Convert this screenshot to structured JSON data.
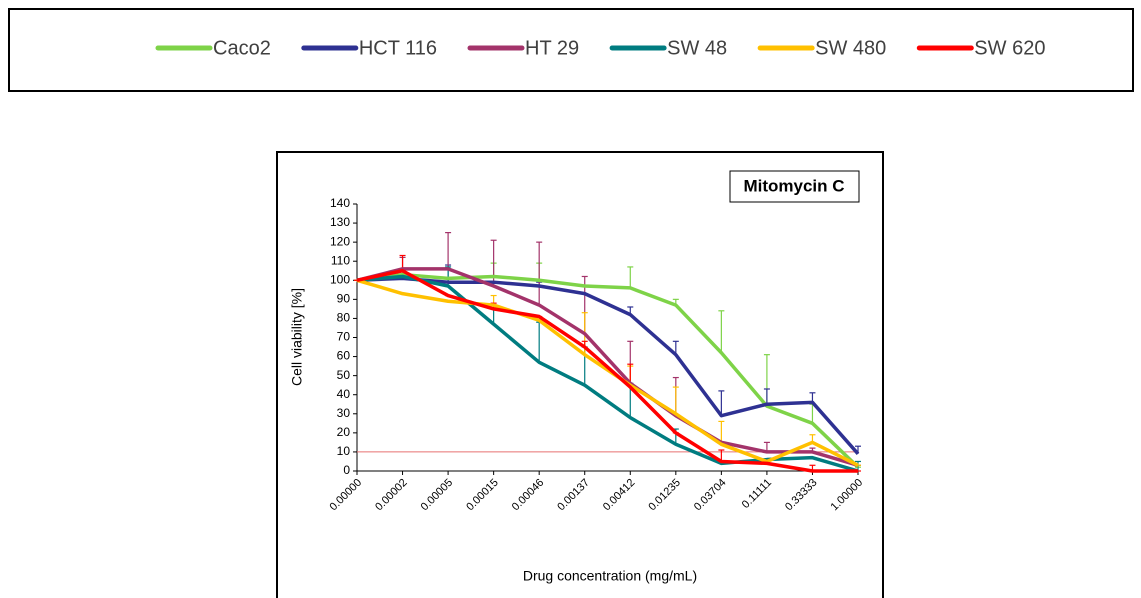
{
  "chart_data": {
    "type": "line",
    "title": "Mitomycin C",
    "x_label": "Drug concentration (mg/mL)",
    "y_label": "Cell viability [%]",
    "categories": [
      "0.00000",
      "0.00002",
      "0.00005",
      "0.00015",
      "0.00046",
      "0.00137",
      "0.00412",
      "0.01235",
      "0.03704",
      "0.11111",
      "0.33333",
      "1.00000"
    ],
    "ylim": [
      0,
      140
    ],
    "yticks": [
      0,
      10,
      20,
      30,
      40,
      50,
      60,
      70,
      80,
      90,
      100,
      110,
      120,
      130,
      140
    ],
    "reference_line": 10,
    "reference_color": "#e87070",
    "series": [
      {
        "name": "Caco2",
        "color": "#7ed348",
        "values": [
          100,
          103,
          101,
          102,
          100,
          97,
          96,
          87,
          62,
          34,
          25,
          2
        ],
        "errors": [
          0,
          2,
          0,
          7,
          9,
          0,
          11,
          3,
          22,
          27,
          10,
          0
        ]
      },
      {
        "name": "HCT 116",
        "color": "#2e3192",
        "values": [
          100,
          101,
          99,
          99,
          97,
          93,
          82,
          61,
          29,
          35,
          36,
          9
        ],
        "errors": [
          0,
          2,
          9,
          0,
          2,
          0,
          4,
          7,
          13,
          8,
          5,
          4
        ]
      },
      {
        "name": "HT 29",
        "color": "#a3336a",
        "values": [
          100,
          106,
          106,
          97,
          87,
          72,
          46,
          29,
          15,
          10,
          10,
          3
        ],
        "errors": [
          0,
          6,
          19,
          24,
          33,
          30,
          22,
          20,
          0,
          5,
          2,
          0
        ]
      },
      {
        "name": "SW 48",
        "color": "#007c80",
        "values": [
          100,
          102,
          97,
          77,
          57,
          45,
          28,
          14,
          4,
          6,
          7,
          0
        ],
        "errors": [
          0,
          0,
          10,
          10,
          21,
          20,
          18,
          8,
          0,
          0,
          0,
          5
        ]
      },
      {
        "name": "SW 480",
        "color": "#ffc000",
        "values": [
          100,
          93,
          89,
          87,
          79,
          61,
          45,
          30,
          14,
          5,
          15,
          3
        ],
        "errors": [
          0,
          0,
          0,
          5,
          0,
          22,
          10,
          14,
          12,
          0,
          4,
          0
        ]
      },
      {
        "name": "SW 620",
        "color": "#ff0000",
        "values": [
          100,
          105,
          92,
          85,
          81,
          65,
          44,
          20,
          5,
          4,
          0,
          0
        ],
        "errors": [
          0,
          8,
          0,
          3,
          0,
          3,
          12,
          0,
          6,
          0,
          3,
          0
        ]
      }
    ]
  }
}
